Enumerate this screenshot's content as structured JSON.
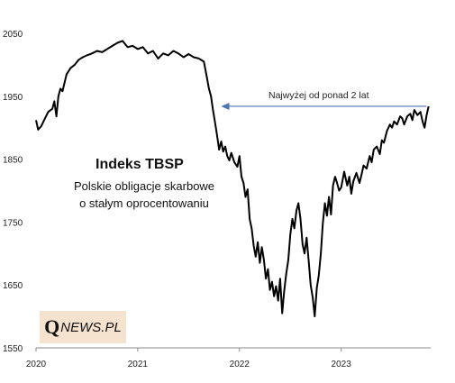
{
  "chart_data": {
    "type": "line",
    "title": "Indeks TBSP",
    "subtitle_lines": [
      "Polskie obligacje skarbowe",
      "o stałym oprocentowaniu"
    ],
    "annotation": "Najwyżej od ponad 2 lat",
    "xlabel": "",
    "ylabel": "",
    "xlim": [
      2020.0,
      2023.88
    ],
    "ylim": [
      1550,
      2060
    ],
    "xticks": [
      2020,
      2021,
      2022,
      2023
    ],
    "xtick_labels": [
      "2020",
      "2021",
      "2022",
      "2023"
    ],
    "yticks": [
      1550,
      1650,
      1750,
      1850,
      1950,
      2050
    ],
    "ytick_labels": [
      "1550",
      "1650",
      "1750",
      "1850",
      "1950",
      "2050"
    ],
    "annotation_level": 1934,
    "grid": false,
    "line_color": "#000000",
    "series": [
      {
        "x": [
          2020.0,
          2020.02,
          2020.05,
          2020.08,
          2020.12,
          2020.16,
          2020.18,
          2020.2,
          2020.22,
          2020.24,
          2020.26,
          2020.3,
          2020.34,
          2020.38,
          2020.42,
          2020.46,
          2020.5,
          2020.55,
          2020.6,
          2020.65,
          2020.7,
          2020.75,
          2020.8,
          2020.85,
          2020.9,
          2020.95,
          2021.0,
          2021.05,
          2021.1,
          2021.15,
          2021.2,
          2021.25,
          2021.3,
          2021.35,
          2021.4,
          2021.45,
          2021.5,
          2021.55,
          2021.6,
          2021.65,
          2021.68,
          2021.7,
          2021.72,
          2021.74,
          2021.76,
          2021.78,
          2021.8,
          2021.82,
          2021.84,
          2021.86,
          2021.88,
          2021.9,
          2021.92,
          2021.95,
          2021.98,
          2022.0,
          2022.02,
          2022.04,
          2022.06,
          2022.08,
          2022.1,
          2022.12,
          2022.14,
          2022.16,
          2022.18,
          2022.2,
          2022.22,
          2022.24,
          2022.26,
          2022.28,
          2022.3,
          2022.32,
          2022.34,
          2022.36,
          2022.38,
          2022.4,
          2022.42,
          2022.44,
          2022.46,
          2022.48,
          2022.5,
          2022.52,
          2022.54,
          2022.56,
          2022.58,
          2022.6,
          2022.62,
          2022.64,
          2022.66,
          2022.68,
          2022.7,
          2022.72,
          2022.74,
          2022.76,
          2022.78,
          2022.8,
          2022.82,
          2022.84,
          2022.86,
          2022.88,
          2022.9,
          2022.92,
          2022.94,
          2022.96,
          2022.98,
          2023.0,
          2023.03,
          2023.06,
          2023.08,
          2023.1,
          2023.12,
          2023.15,
          2023.18,
          2023.2,
          2023.22,
          2023.25,
          2023.28,
          2023.3,
          2023.32,
          2023.35,
          2023.38,
          2023.4,
          2023.42,
          2023.45,
          2023.48,
          2023.5,
          2023.52,
          2023.55,
          2023.58,
          2023.6,
          2023.62,
          2023.65,
          2023.68,
          2023.7,
          2023.72,
          2023.75,
          2023.78,
          2023.8,
          2023.82,
          2023.84,
          2023.86
        ],
        "y": [
          1912,
          1897,
          1902,
          1912,
          1925,
          1930,
          1942,
          1918,
          1950,
          1962,
          1958,
          1985,
          1995,
          2000,
          2008,
          2012,
          2015,
          2018,
          2022,
          2020,
          2025,
          2030,
          2035,
          2038,
          2028,
          2030,
          2025,
          2028,
          2018,
          2022,
          2010,
          2018,
          2015,
          2022,
          2018,
          2012,
          2017,
          2012,
          2010,
          2005,
          1980,
          1962,
          1950,
          1928,
          1908,
          1888,
          1865,
          1878,
          1862,
          1870,
          1855,
          1848,
          1860,
          1845,
          1838,
          1855,
          1822,
          1812,
          1790,
          1802,
          1755,
          1740,
          1712,
          1695,
          1718,
          1685,
          1710,
          1690,
          1660,
          1675,
          1642,
          1655,
          1632,
          1648,
          1625,
          1660,
          1605,
          1640,
          1668,
          1690,
          1730,
          1755,
          1740,
          1768,
          1780,
          1755,
          1715,
          1700,
          1725,
          1690,
          1650,
          1630,
          1600,
          1645,
          1665,
          1700,
          1748,
          1780,
          1760,
          1790,
          1762,
          1808,
          1822,
          1812,
          1800,
          1805,
          1830,
          1808,
          1822,
          1795,
          1815,
          1828,
          1812,
          1825,
          1840,
          1835,
          1855,
          1845,
          1865,
          1870,
          1858,
          1880,
          1876,
          1895,
          1905,
          1900,
          1910,
          1905,
          1918,
          1915,
          1905,
          1918,
          1922,
          1912,
          1928,
          1920,
          1925,
          1910,
          1900,
          1920,
          1934
        ]
      }
    ]
  }
}
